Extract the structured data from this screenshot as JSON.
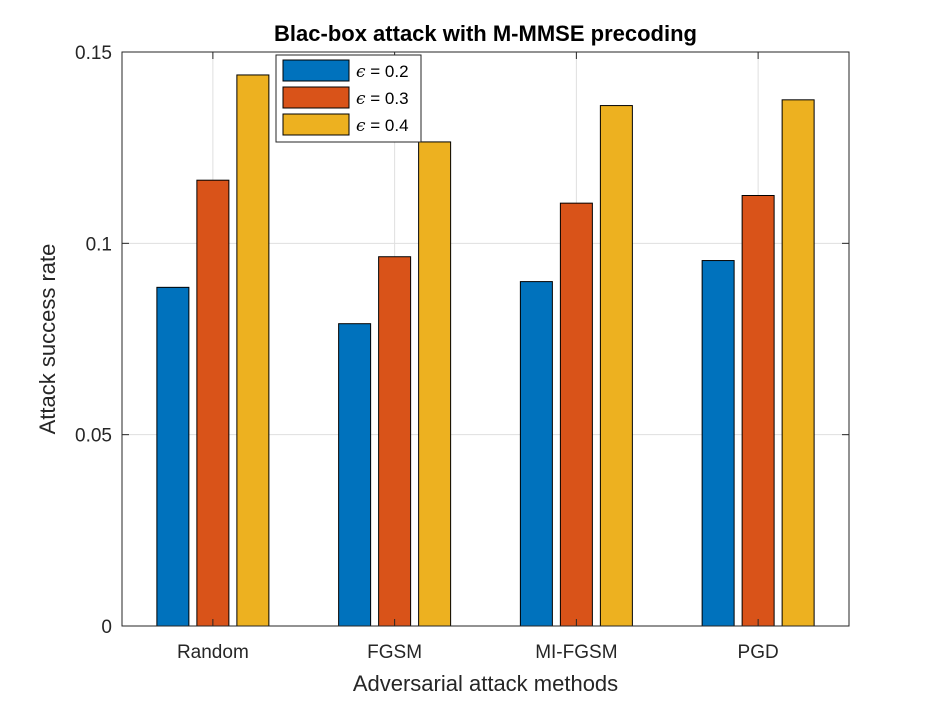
{
  "chart_data": {
    "type": "bar",
    "title": "Blac-box attack with M-MMSE precoding",
    "xlabel": "Adversarial attack methods",
    "ylabel": "Attack success rate",
    "categories": [
      "Random",
      "FGSM",
      "MI-FGSM",
      "PGD"
    ],
    "series": [
      {
        "name": "ϵ = 0.2",
        "color": "#0072BD",
        "values": [
          0.0885,
          0.079,
          0.09,
          0.0955
        ]
      },
      {
        "name": "ϵ = 0.3",
        "color": "#D95319",
        "values": [
          0.1165,
          0.0965,
          0.1105,
          0.1125
        ]
      },
      {
        "name": "ϵ = 0.4",
        "color": "#EDB120",
        "values": [
          0.144,
          0.1265,
          0.136,
          0.1375
        ]
      }
    ],
    "ylim": [
      0,
      0.15
    ],
    "yticks": [
      0,
      0.05,
      0.1,
      0.15
    ],
    "ytick_labels": [
      "0",
      "0.05",
      "0.1",
      "0.15"
    ],
    "grid": true,
    "legend_position": "top-left"
  }
}
